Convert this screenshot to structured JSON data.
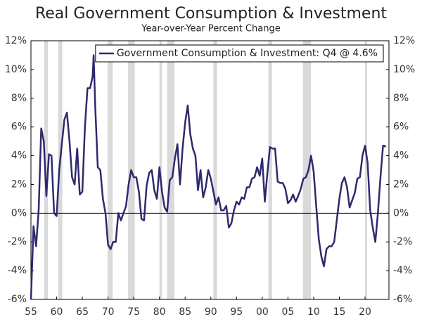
{
  "chart_data": {
    "type": "line",
    "title": "Real Government Consumption & Investment",
    "subtitle": "Year-over-Year Percent Change",
    "xlim": [
      1955,
      2024.65
    ],
    "xticks": [
      {
        "value": 1955,
        "label": "55"
      },
      {
        "value": 1960,
        "label": "60"
      },
      {
        "value": 1965,
        "label": "65"
      },
      {
        "value": 1970,
        "label": "70"
      },
      {
        "value": 1975,
        "label": "75"
      },
      {
        "value": 1980,
        "label": "80"
      },
      {
        "value": 1985,
        "label": "85"
      },
      {
        "value": 1990,
        "label": "90"
      },
      {
        "value": 1995,
        "label": "95"
      },
      {
        "value": 2000,
        "label": "00"
      },
      {
        "value": 2005,
        "label": "05"
      },
      {
        "value": 2010,
        "label": "10"
      },
      {
        "value": 2015,
        "label": "15"
      },
      {
        "value": 2020,
        "label": "20"
      }
    ],
    "ylim": [
      -6,
      12
    ],
    "yticks": [
      {
        "value": -6,
        "label": "-6%"
      },
      {
        "value": -4,
        "label": "-4%"
      },
      {
        "value": -2,
        "label": "-2%"
      },
      {
        "value": 0,
        "label": "0%"
      },
      {
        "value": 2,
        "label": "2%"
      },
      {
        "value": 4,
        "label": "4%"
      },
      {
        "value": 6,
        "label": "6%"
      },
      {
        "value": 8,
        "label": "8%"
      },
      {
        "value": 10,
        "label": "10%"
      },
      {
        "value": 12,
        "label": "12%"
      }
    ],
    "grid": false,
    "legend": "top-right",
    "shaded_color": "#d9d9d9",
    "shaded_periods": [
      [
        1957.6,
        1958.3
      ],
      [
        1960.3,
        1961.1
      ],
      [
        1969.9,
        1970.9
      ],
      [
        1973.9,
        1975.2
      ],
      [
        1980.0,
        1980.5
      ],
      [
        1981.5,
        1982.9
      ],
      [
        1990.5,
        1991.2
      ],
      [
        2001.2,
        2001.9
      ],
      [
        2007.9,
        2009.5
      ],
      [
        2020.0,
        2020.4
      ]
    ],
    "x": [
      1955.0,
      1955.5,
      1956.0,
      1956.5,
      1957.0,
      1957.5,
      1958.0,
      1958.5,
      1959.0,
      1959.5,
      1960.0,
      1960.5,
      1961.0,
      1961.5,
      1962.0,
      1962.5,
      1963.0,
      1963.5,
      1964.0,
      1964.5,
      1965.0,
      1965.5,
      1966.0,
      1966.5,
      1967.0,
      1967.2,
      1967.5,
      1968.0,
      1968.5,
      1969.0,
      1969.5,
      1970.0,
      1970.5,
      1971.0,
      1971.5,
      1972.0,
      1972.5,
      1973.0,
      1973.5,
      1974.0,
      1974.5,
      1975.0,
      1975.5,
      1976.0,
      1976.5,
      1977.0,
      1977.5,
      1978.0,
      1978.5,
      1979.0,
      1979.5,
      1980.0,
      1980.5,
      1981.0,
      1981.5,
      1982.0,
      1982.5,
      1983.0,
      1983.5,
      1984.0,
      1984.5,
      1985.0,
      1985.5,
      1986.0,
      1986.5,
      1987.0,
      1987.5,
      1988.0,
      1988.5,
      1989.0,
      1989.5,
      1990.0,
      1990.5,
      1991.0,
      1991.5,
      1992.0,
      1992.5,
      1993.0,
      1993.5,
      1994.0,
      1994.5,
      1995.0,
      1995.5,
      1996.0,
      1996.5,
      1997.0,
      1997.5,
      1998.0,
      1998.5,
      1999.0,
      1999.5,
      2000.0,
      2000.5,
      2001.0,
      2001.5,
      2002.0,
      2002.5,
      2003.0,
      2003.5,
      2004.0,
      2004.5,
      2005.0,
      2005.5,
      2006.0,
      2006.5,
      2007.0,
      2007.5,
      2008.0,
      2008.5,
      2009.0,
      2009.5,
      2010.0,
      2010.5,
      2011.0,
      2011.5,
      2012.0,
      2012.5,
      2013.0,
      2013.5,
      2014.0,
      2014.5,
      2015.0,
      2015.5,
      2016.0,
      2016.5,
      2017.0,
      2017.5,
      2018.0,
      2018.5,
      2019.0,
      2019.5,
      2020.0,
      2020.5,
      2021.0,
      2021.5,
      2022.0,
      2022.5,
      2023.0,
      2023.5,
      2023.75,
      2024.0
    ],
    "series": [
      {
        "name": "Government Consumption & Investment: Q4 @ 4.6%",
        "color": "#2e2a6e",
        "values": [
          -6.0,
          -0.9,
          -2.3,
          0.2,
          5.9,
          5.0,
          1.2,
          4.1,
          4.0,
          0.0,
          -0.2,
          3.0,
          4.8,
          6.5,
          7.0,
          5.0,
          2.5,
          2.0,
          4.5,
          1.3,
          1.5,
          6.0,
          8.7,
          8.7,
          9.5,
          11.0,
          7.5,
          3.2,
          3.0,
          1.0,
          0.0,
          -2.2,
          -2.5,
          -2.0,
          -2.0,
          0.0,
          -0.5,
          0.0,
          0.5,
          2.0,
          3.0,
          2.5,
          2.5,
          1.5,
          -0.4,
          -0.5,
          1.9,
          2.8,
          3.0,
          1.6,
          1.0,
          3.2,
          1.5,
          0.4,
          0.1,
          2.3,
          2.5,
          3.8,
          4.8,
          2.0,
          4.5,
          6.3,
          7.5,
          5.5,
          4.5,
          4.0,
          1.6,
          3.0,
          1.1,
          1.8,
          3.0,
          2.4,
          1.5,
          0.6,
          1.1,
          0.2,
          0.2,
          0.5,
          -1.0,
          -0.7,
          0.2,
          0.8,
          0.6,
          1.1,
          1.0,
          1.8,
          1.8,
          2.4,
          2.5,
          3.2,
          2.6,
          3.8,
          0.8,
          2.8,
          4.6,
          4.5,
          4.5,
          2.2,
          2.1,
          2.1,
          1.7,
          0.7,
          0.9,
          1.3,
          0.8,
          1.2,
          1.7,
          2.4,
          2.5,
          3.0,
          4.0,
          2.9,
          0.5,
          -1.8,
          -3.0,
          -3.7,
          -2.5,
          -2.3,
          -2.3,
          -2.0,
          -0.5,
          1.0,
          2.1,
          2.5,
          1.8,
          0.4,
          0.9,
          1.4,
          2.4,
          2.5,
          4.0,
          4.7,
          3.5,
          0.2,
          -1.0,
          -2.0,
          0.0,
          2.5,
          4.7,
          4.7,
          4.6
        ]
      }
    ]
  }
}
